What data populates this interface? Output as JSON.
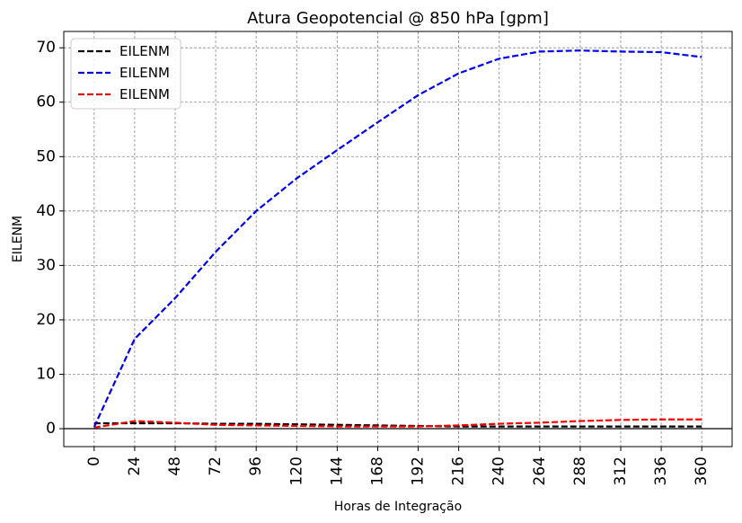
{
  "chart_data": {
    "type": "line",
    "title": "Atura Geopotencial @ 850 hPa [gpm]",
    "xlabel": "Horas de Integração",
    "ylabel": "EILENM",
    "x": [
      0,
      24,
      48,
      72,
      96,
      120,
      144,
      168,
      192,
      216,
      240,
      264,
      288,
      312,
      336,
      360
    ],
    "x_ticks": [
      "0",
      "24",
      "48",
      "72",
      "96",
      "120",
      "144",
      "168",
      "192",
      "216",
      "240",
      "264",
      "288",
      "312",
      "336",
      "360"
    ],
    "y_ticks": [
      "0",
      "10",
      "20",
      "30",
      "40",
      "50",
      "60",
      "70"
    ],
    "xlim": [
      -18,
      378
    ],
    "ylim": [
      -3.3,
      73
    ],
    "grid": true,
    "zero_line": true,
    "legend_position": "top-left",
    "series": [
      {
        "name": "EILENM",
        "color": "#000000",
        "line_style": "dashed",
        "values": [
          1.0,
          1.0,
          1.0,
          0.9,
          0.9,
          0.8,
          0.7,
          0.6,
          0.5,
          0.4,
          0.4,
          0.4,
          0.4,
          0.4,
          0.4,
          0.4
        ]
      },
      {
        "name": "EILENM",
        "color": "#0000ee",
        "line_style": "dashed",
        "values": [
          0.3,
          16.5,
          24.0,
          32.5,
          40.0,
          46.0,
          51.2,
          56.3,
          61.3,
          65.3,
          68.0,
          69.3,
          69.5,
          69.3,
          69.2,
          68.3
        ]
      },
      {
        "name": "EILENM",
        "color": "#ee0000",
        "line_style": "dashed",
        "values": [
          0.2,
          1.4,
          1.1,
          0.7,
          0.6,
          0.5,
          0.4,
          0.4,
          0.4,
          0.6,
          0.9,
          1.1,
          1.4,
          1.6,
          1.7,
          1.7
        ]
      }
    ]
  }
}
